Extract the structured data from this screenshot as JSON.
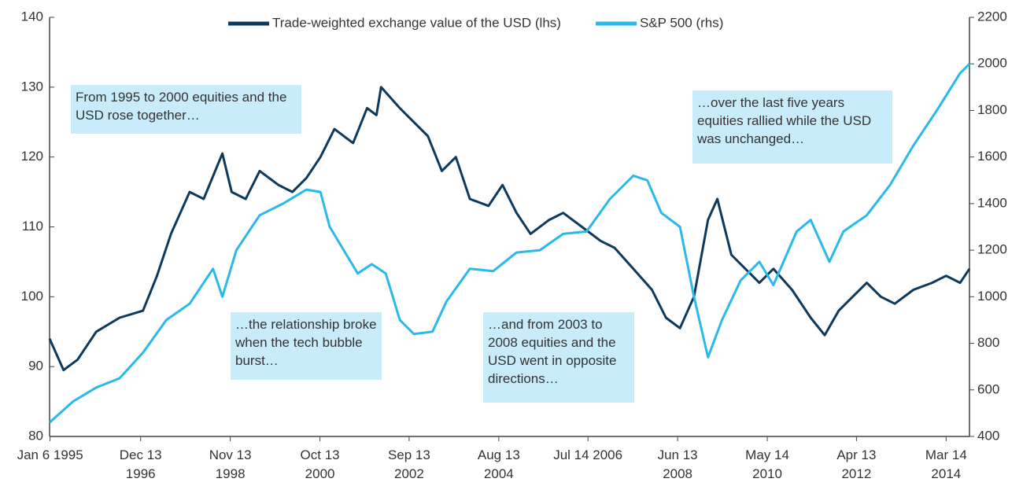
{
  "chart_data": {
    "type": "line",
    "legend": "top",
    "xlim": [
      1995.0,
      2014.7
    ],
    "xticks": [
      {
        "value": 1995.01,
        "label": "Jan 6 1995"
      },
      {
        "value": 1996.95,
        "label": "Dec 13 1996"
      },
      {
        "value": 1998.87,
        "label": "Nov 13 1998"
      },
      {
        "value": 2000.79,
        "label": "Oct 13 2000"
      },
      {
        "value": 2002.7,
        "label": "Sep 13 2002"
      },
      {
        "value": 2004.62,
        "label": "Aug 13 2004"
      },
      {
        "value": 2006.53,
        "label": "Jul 14 2006"
      },
      {
        "value": 2008.45,
        "label": "Jun 13 2008"
      },
      {
        "value": 2010.37,
        "label": "May 14 2010"
      },
      {
        "value": 2012.28,
        "label": "Apr 13 2012"
      },
      {
        "value": 2014.2,
        "label": "Mar 14 2014"
      }
    ],
    "ylim": [
      80,
      140
    ],
    "yticks": [
      80,
      90,
      100,
      110,
      120,
      130,
      140
    ],
    "y2lim": [
      400,
      2200
    ],
    "y2ticks": [
      400,
      600,
      800,
      1000,
      1200,
      1400,
      1600,
      1800,
      2000,
      2200
    ],
    "series": [
      {
        "name": "Trade-weighted exchange value of the USD (lhs)",
        "color": "#0d3a5c",
        "axis": "y",
        "x": [
          1995.0,
          1995.3,
          1995.6,
          1996.0,
          1996.5,
          1997.0,
          1997.3,
          1997.6,
          1998.0,
          1998.3,
          1998.7,
          1998.9,
          1999.2,
          1999.5,
          1999.9,
          2000.2,
          2000.5,
          2000.8,
          2001.1,
          2001.5,
          2001.8,
          2002.0,
          2002.1,
          2002.5,
          2002.8,
          2003.1,
          2003.4,
          2003.7,
          2004.0,
          2004.4,
          2004.7,
          2005.0,
          2005.3,
          2005.7,
          2006.0,
          2006.4,
          2006.8,
          2007.1,
          2007.5,
          2007.9,
          2008.2,
          2008.5,
          2008.8,
          2009.1,
          2009.3,
          2009.6,
          2009.9,
          2010.2,
          2010.5,
          2010.9,
          2011.3,
          2011.6,
          2011.9,
          2012.2,
          2012.5,
          2012.8,
          2013.1,
          2013.5,
          2013.9,
          2014.2,
          2014.5,
          2014.7
        ],
        "values": [
          94,
          89.5,
          91,
          95,
          97,
          98,
          103,
          109,
          115,
          114,
          120.5,
          115,
          114,
          118,
          116,
          115,
          117,
          120,
          124,
          122,
          127,
          126,
          130,
          127,
          125,
          123,
          118,
          120,
          114,
          113,
          116,
          112,
          109,
          111,
          112,
          110,
          108,
          107,
          104,
          101,
          97,
          95.5,
          100,
          111,
          114,
          106,
          104,
          102,
          104,
          101,
          97,
          94.5,
          98,
          100,
          102,
          100,
          99,
          101,
          102,
          103,
          102,
          104
        ]
      },
      {
        "name": "S&P 500 (rhs)",
        "color": "#29b9ea",
        "axis": "y2",
        "x": [
          1995.0,
          1995.5,
          1996.0,
          1996.5,
          1997.0,
          1997.5,
          1998.0,
          1998.5,
          1998.7,
          1999.0,
          1999.5,
          2000.0,
          2000.5,
          2000.8,
          2001.0,
          2001.3,
          2001.6,
          2001.9,
          2002.2,
          2002.5,
          2002.8,
          2003.2,
          2003.5,
          2004.0,
          2004.5,
          2005.0,
          2005.5,
          2006.0,
          2006.5,
          2007.0,
          2007.5,
          2007.8,
          2008.1,
          2008.5,
          2008.8,
          2009.1,
          2009.4,
          2009.8,
          2010.2,
          2010.5,
          2011.0,
          2011.3,
          2011.7,
          2012.0,
          2012.5,
          2013.0,
          2013.5,
          2014.0,
          2014.5,
          2014.7
        ],
        "values": [
          460,
          550,
          610,
          650,
          760,
          900,
          970,
          1120,
          1000,
          1200,
          1350,
          1400,
          1460,
          1450,
          1300,
          1200,
          1100,
          1140,
          1100,
          900,
          840,
          850,
          980,
          1120,
          1110,
          1190,
          1200,
          1270,
          1280,
          1420,
          1520,
          1500,
          1360,
          1300,
          1000,
          740,
          900,
          1070,
          1150,
          1050,
          1280,
          1330,
          1150,
          1280,
          1350,
          1480,
          1650,
          1800,
          1960,
          2000
        ]
      }
    ],
    "annotations": [
      "From 1995 to 2000 equities and the USD rose together…",
      "…the relationship broke when the tech bubble burst…",
      "…and from 2003 to 2008 equities and the USD went in opposite directions…",
      "…over the last five years equities rallied while the USD was unchanged…"
    ]
  }
}
